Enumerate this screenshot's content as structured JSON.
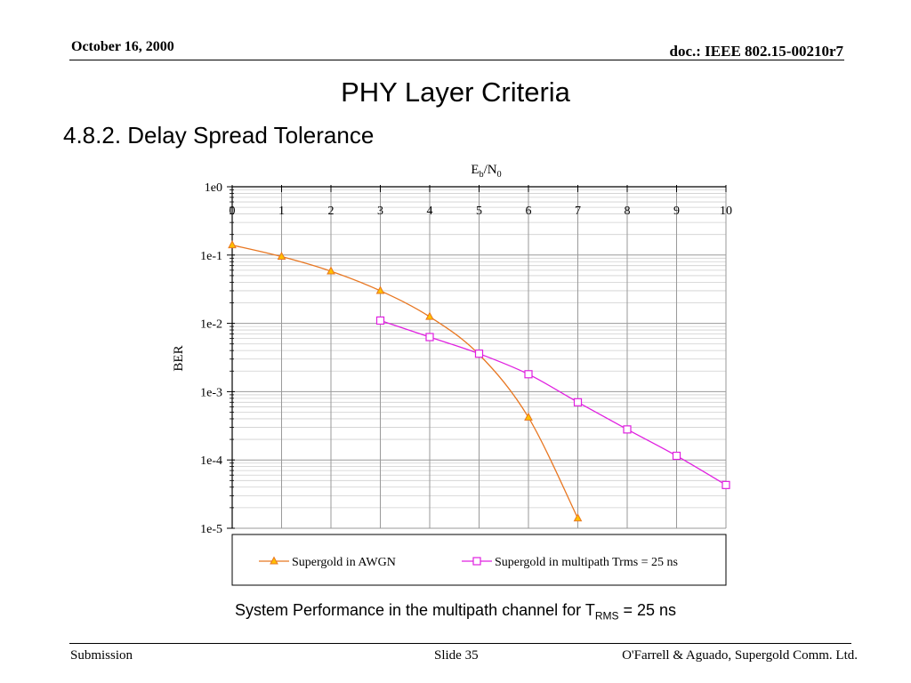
{
  "header": {
    "date": "October 16, 2000",
    "doc": "doc.: IEEE 802.15-00210r7"
  },
  "slide": {
    "title": "PHY Layer Criteria",
    "subtitle": "4.8.2. Delay Spread Tolerance"
  },
  "chart_data": {
    "type": "line",
    "xlabel_main": "E",
    "xlabel_sub1": "b",
    "xlabel_mid": "/N",
    "xlabel_sub2": "0",
    "ylabel": "BER",
    "xlim": [
      0,
      10
    ],
    "ylim": [
      1e-05,
      1
    ],
    "y_scale": "log",
    "x_ticks": [
      "0",
      "1",
      "2",
      "3",
      "4",
      "5",
      "6",
      "7",
      "8",
      "9",
      "10"
    ],
    "y_ticks": [
      {
        "value": 1,
        "label": "1e0"
      },
      {
        "value": 0.1,
        "label": "1e-1"
      },
      {
        "value": 0.01,
        "label": "1e-2"
      },
      {
        "value": 0.001,
        "label": "1e-3"
      },
      {
        "value": 0.0001,
        "label": "1e-4"
      },
      {
        "value": 1e-05,
        "label": "1e-5"
      }
    ],
    "x_axis_position": "top",
    "grid": true,
    "legend_position": "bottom",
    "series": [
      {
        "name": "Supergold in AWGN",
        "color": "#E87722",
        "marker": "triangle",
        "marker_fill": "#FFC000",
        "x": [
          0,
          1,
          2,
          3,
          4,
          5,
          6,
          7
        ],
        "y": [
          0.14,
          0.095,
          0.058,
          0.03,
          0.0125,
          0.0035,
          0.00042,
          1.4e-05
        ]
      },
      {
        "name": "Supergold in multipath Trms = 25 ns",
        "color": "#E020E0",
        "marker": "square",
        "marker_fill": "#ffffff",
        "x": [
          3,
          4,
          5,
          6,
          7,
          8,
          9,
          10
        ],
        "y": [
          0.011,
          0.0063,
          0.0036,
          0.0018,
          0.0007,
          0.00028,
          0.000115,
          4.3e-05
        ]
      }
    ]
  },
  "caption": {
    "text": "System Performance in the multipath channel for T",
    "sub": "RMS",
    "tail": " = 25 ns"
  },
  "footer": {
    "left": "Submission",
    "center": "Slide 35",
    "right": "O'Farrell & Aguado, Supergold Comm. Ltd."
  }
}
